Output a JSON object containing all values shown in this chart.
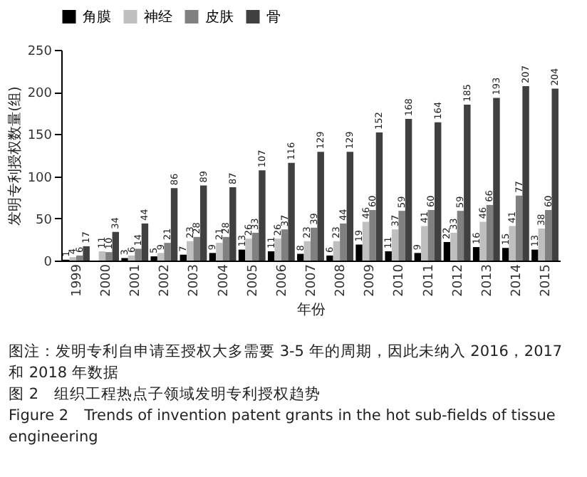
{
  "chart_data": {
    "type": "bar",
    "categories": [
      "1999",
      "2000",
      "2001",
      "2002",
      "2003",
      "2004",
      "2005",
      "2006",
      "2007",
      "2008",
      "2009",
      "2010",
      "2011",
      "2012",
      "2013",
      "2014",
      "2015"
    ],
    "series": [
      {
        "name": "角膜",
        "color": "#000000",
        "values": [
          1,
          null,
          3,
          5,
          7,
          9,
          13,
          11,
          8,
          6,
          19,
          11,
          9,
          22,
          16,
          15,
          13
        ]
      },
      {
        "name": "神经",
        "color": "#bfbfbf",
        "values": [
          4,
          11,
          6,
          9,
          23,
          21,
          26,
          26,
          23,
          23,
          46,
          37,
          41,
          33,
          46,
          41,
          38
        ]
      },
      {
        "name": "皮肤",
        "color": "#808080",
        "values": [
          6,
          10,
          14,
          21,
          28,
          28,
          33,
          37,
          39,
          44,
          60,
          59,
          60,
          59,
          66,
          77,
          60
        ]
      },
      {
        "name": "骨",
        "color": "#404040",
        "values": [
          17,
          34,
          44,
          86,
          89,
          87,
          107,
          116,
          129,
          129,
          152,
          168,
          164,
          185,
          193,
          207,
          204
        ]
      }
    ],
    "xlabel": "年份",
    "ylabel": "发明专利授权数量(组)",
    "ylim": [
      0,
      250
    ],
    "yticks": [
      0,
      50,
      100,
      150,
      200,
      250
    ],
    "data_labels": true,
    "legend": "top",
    "annotations": [
      "图注：发明专利自申请至授权大多需要 3-5 年的周期，因此未纳入 2016，2017 和 2018 年数据",
      "图 2　组织工程热点子领域发明专利授权趋势",
      "Figure 2　Trends of invention patent grants in the hot sub-fields of tissue engineering"
    ]
  }
}
